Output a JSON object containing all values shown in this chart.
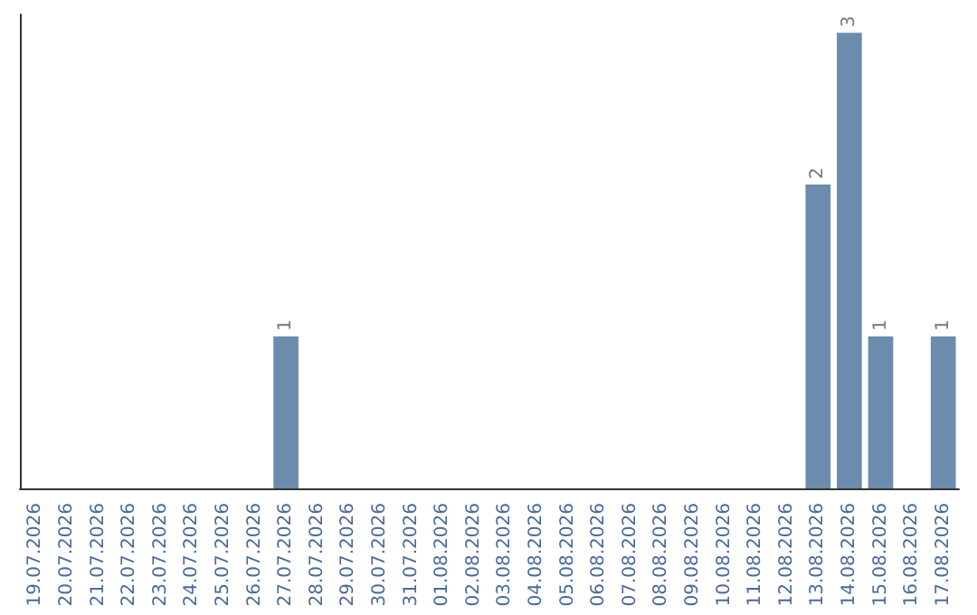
{
  "chart_data": {
    "type": "bar",
    "categories": [
      "19.07.2026",
      "20.07.2026",
      "21.07.2026",
      "22.07.2026",
      "23.07.2026",
      "24.07.2026",
      "25.07.2026",
      "26.07.2026",
      "27.07.2026",
      "28.07.2026",
      "29.07.2026",
      "30.07.2026",
      "31.07.2026",
      "01.08.2026",
      "02.08.2026",
      "03.08.2026",
      "04.08.2026",
      "05.08.2026",
      "06.08.2026",
      "07.08.2026",
      "08.08.2026",
      "09.08.2026",
      "10.08.2026",
      "11.08.2026",
      "12.08.2026",
      "13.08.2026",
      "14.08.2026",
      "15.08.2026",
      "16.08.2026",
      "17.08.2026"
    ],
    "values": [
      0,
      0,
      0,
      0,
      0,
      0,
      0,
      0,
      1,
      0,
      0,
      0,
      0,
      0,
      0,
      0,
      0,
      0,
      0,
      0,
      0,
      0,
      0,
      0,
      0,
      2,
      3,
      1,
      0,
      1
    ],
    "value_labels": [
      null,
      null,
      null,
      null,
      null,
      null,
      null,
      null,
      "1",
      null,
      null,
      null,
      null,
      null,
      null,
      null,
      null,
      null,
      null,
      null,
      null,
      null,
      null,
      null,
      null,
      "2",
      "3",
      "1",
      null,
      "1"
    ],
    "color": "#6b8cac",
    "tick_labels": "x"
  }
}
